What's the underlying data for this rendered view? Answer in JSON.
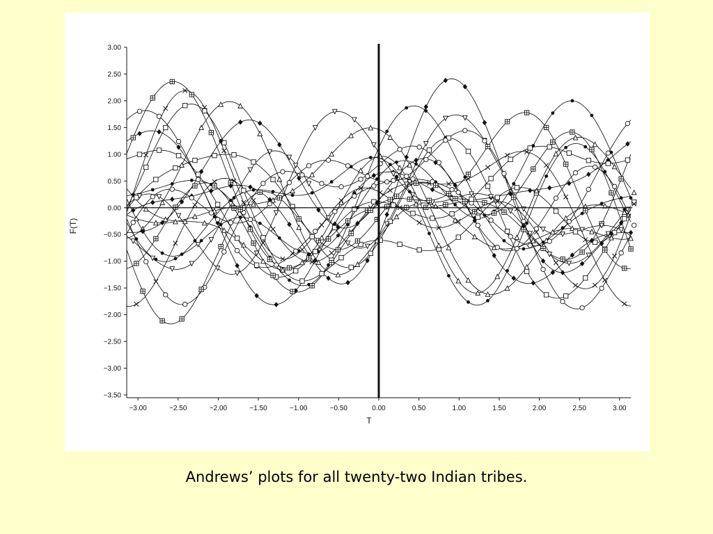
{
  "caption": "Andrews’ plots for all twenty-two Indian tribes.",
  "colors": {
    "background": "#ffffcc",
    "panel": "#ffffff",
    "ink": "#111111"
  },
  "chart_data": {
    "type": "line",
    "title": "",
    "xlabel": "T",
    "ylabel": "F(T)",
    "xlim": [
      -3.14,
      3.14
    ],
    "ylim": [
      -3.5,
      3.0
    ],
    "x_ticks": [
      -3.0,
      -2.5,
      -2.0,
      -1.5,
      -1.0,
      -0.5,
      0.0,
      0.5,
      1.0,
      1.5,
      2.0,
      2.5,
      3.0
    ],
    "x_tick_labels": [
      "−3.00",
      "−2.50",
      "−2.00",
      "−1.50",
      "−1.00",
      "−0.50",
      "0.00",
      "0.50",
      "1.00",
      "1.50",
      "2.00",
      "2.50",
      "3.00"
    ],
    "y_ticks": [
      3.0,
      2.5,
      2.0,
      1.5,
      1.0,
      0.5,
      0.0,
      -0.5,
      -1.0,
      -1.5,
      -2.0,
      -2.5,
      -3.0,
      -3.5
    ],
    "y_tick_labels": [
      "3.00",
      "2.50",
      "2.00",
      "1.50",
      "1.00",
      "0.50",
      "0.00",
      "−0.50",
      "−1.00",
      "−1.50",
      "−2.00",
      "−2.50",
      "−3.00",
      "−3.50"
    ],
    "reference_lines": {
      "horizontal_y": 0.0,
      "vertical_x": 0.0
    },
    "grid": false,
    "legend": "none",
    "marker_symbols": [
      "dot",
      "square",
      "diamond",
      "triangle",
      "circle",
      "square-plus",
      "x",
      "triangle-down"
    ],
    "series": [
      {
        "coeffs": [
          0.1,
          0.3,
          0.2,
          0.9,
          0.6,
          0.4,
          0.25
        ],
        "marker": "dot"
      },
      {
        "coeffs": [
          -0.05,
          -0.4,
          0.1,
          1.1,
          -0.3,
          0.2,
          -0.4
        ],
        "marker": "square"
      },
      {
        "coeffs": [
          0.2,
          0.6,
          -0.5,
          0.4,
          0.8,
          -0.3,
          0.2
        ],
        "marker": "diamond"
      },
      {
        "coeffs": [
          -0.1,
          -0.7,
          -0.3,
          0.6,
          -0.5,
          0.5,
          0.3
        ],
        "marker": "triangle"
      },
      {
        "coeffs": [
          0.0,
          0.2,
          0.7,
          -0.5,
          0.3,
          0.7,
          -0.2
        ],
        "marker": "circle"
      },
      {
        "coeffs": [
          0.15,
          -0.3,
          -0.6,
          1.0,
          0.4,
          -0.5,
          0.1
        ],
        "marker": "square-plus"
      },
      {
        "coeffs": [
          -0.2,
          0.5,
          0.4,
          0.3,
          -0.7,
          0.1,
          0.6
        ],
        "marker": "x"
      },
      {
        "coeffs": [
          0.05,
          -0.1,
          0.8,
          -0.2,
          0.5,
          -0.6,
          -0.3
        ],
        "marker": "triangle-down"
      },
      {
        "coeffs": [
          0.25,
          0.8,
          -0.2,
          -0.4,
          0.2,
          0.6,
          0.4
        ],
        "marker": "dot"
      },
      {
        "coeffs": [
          -0.15,
          -0.2,
          -0.8,
          0.7,
          -0.2,
          -0.4,
          0.5
        ],
        "marker": "square"
      },
      {
        "coeffs": [
          0.1,
          0.4,
          0.3,
          1.2,
          -0.4,
          0.3,
          -0.5
        ],
        "marker": "diamond"
      },
      {
        "coeffs": [
          -0.05,
          -0.6,
          0.5,
          -0.3,
          0.7,
          0.2,
          0.3
        ],
        "marker": "triangle"
      },
      {
        "coeffs": [
          0.2,
          0.1,
          -0.4,
          0.5,
          0.9,
          -0.2,
          -0.2
        ],
        "marker": "circle"
      },
      {
        "coeffs": [
          -0.25,
          0.7,
          0.2,
          -0.6,
          -0.3,
          0.8,
          0.1
        ],
        "marker": "square-plus"
      },
      {
        "coeffs": [
          0.0,
          -0.5,
          -0.2,
          0.9,
          0.1,
          -0.7,
          0.4
        ],
        "marker": "x"
      },
      {
        "coeffs": [
          0.1,
          0.3,
          0.6,
          0.2,
          -0.6,
          0.4,
          -0.6
        ],
        "marker": "triangle-down"
      },
      {
        "coeffs": [
          -0.1,
          -0.3,
          0.1,
          -0.8,
          0.4,
          0.5,
          0.5
        ],
        "marker": "dot"
      },
      {
        "coeffs": [
          0.3,
          0.6,
          -0.7,
          0.1,
          0.3,
          -0.3,
          0.3
        ],
        "marker": "square"
      },
      {
        "coeffs": [
          0.05,
          -0.8,
          0.4,
          0.5,
          -0.2,
          0.6,
          -0.1
        ],
        "marker": "diamond"
      },
      {
        "coeffs": [
          -0.2,
          0.2,
          -0.3,
          -0.4,
          0.8,
          0.3,
          0.6
        ],
        "marker": "triangle"
      },
      {
        "coeffs": [
          0.15,
          -0.1,
          0.9,
          0.6,
          -0.1,
          -0.5,
          -0.4
        ],
        "marker": "circle"
      },
      {
        "coeffs": [
          -0.05,
          0.9,
          -0.1,
          0.3,
          -0.5,
          -0.2,
          0.7
        ],
        "marker": "square-plus"
      }
    ]
  }
}
